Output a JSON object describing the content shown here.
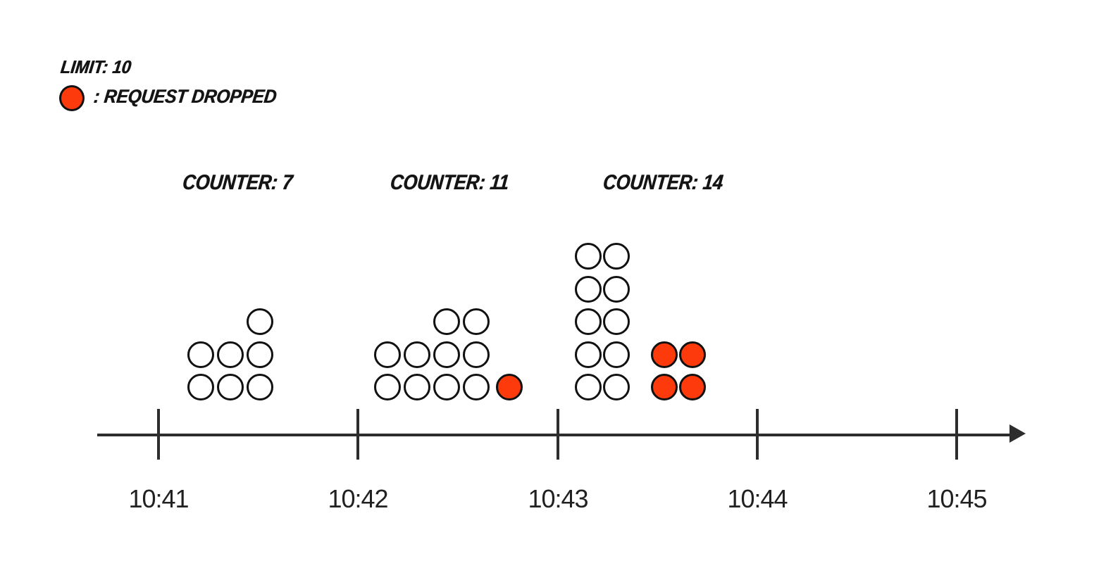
{
  "legend": {
    "limit_label": "LIMIT: 10",
    "dropped_label": ": REQUEST DROPPED"
  },
  "colors": {
    "background": "#ffffff",
    "dropped_fill": "#fc3a0b",
    "accepted_fill": "#ffffff",
    "circle_stroke": "#111111",
    "axis": "#2d2d2d",
    "tick_text": "#212121",
    "comic_text": "#151515"
  },
  "chart_data": {
    "type": "timeline-dot-diagram",
    "limit": 10,
    "x_ticks": [
      "10:41",
      "10:42",
      "10:43",
      "10:44",
      "10:45"
    ],
    "dot_legend": {
      "O": "request accepted (white circle)",
      "X": "request dropped (red circle)"
    },
    "windows": [
      {
        "label": "COUNTER: 7",
        "counter": 7,
        "accepted": 7,
        "dropped": 0,
        "window_start": "10:41",
        "rows": [
          "..O",
          "OOO",
          "OOO"
        ]
      },
      {
        "label": "COUNTER: 11",
        "counter": 11,
        "accepted": 10,
        "dropped": 1,
        "window_start": "10:42",
        "rows": [
          "..OO.",
          "OOOO.",
          "OOOOX"
        ]
      },
      {
        "label": "COUNTER: 14",
        "counter": 14,
        "accepted": 10,
        "dropped": 4,
        "window_start": "10:43",
        "rows": [
          "OO..",
          "OO..",
          "OO..",
          "OOXX",
          "OOXX"
        ]
      }
    ]
  }
}
